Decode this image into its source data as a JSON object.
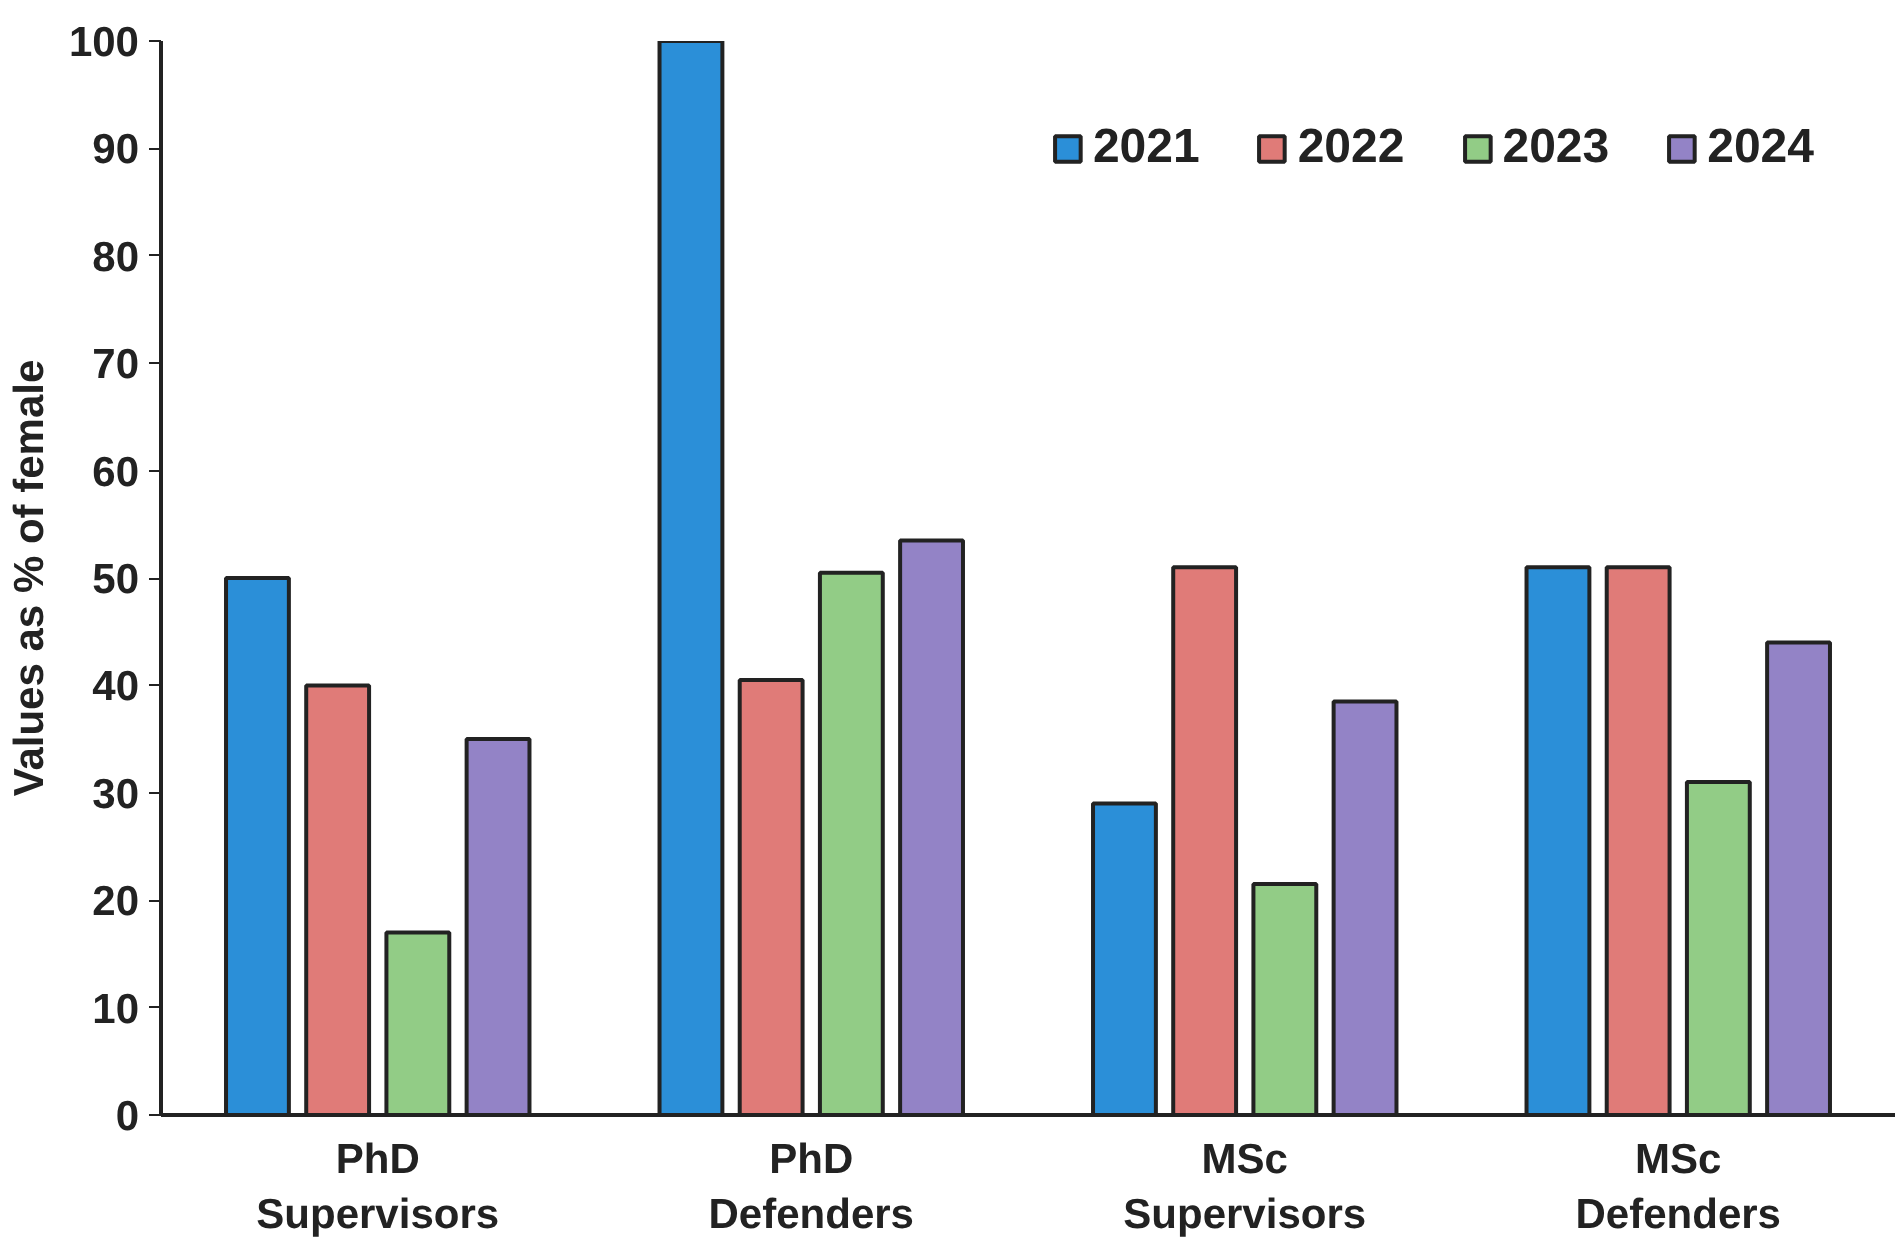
{
  "chart_data": {
    "type": "bar",
    "ylabel": "Values as % of female",
    "categories": [
      "PhD\nSupervisors",
      "PhD\nDefenders",
      "MSc\nSupervisors",
      "MSc\nDefenders"
    ],
    "series": [
      {
        "name": "2021",
        "color": "#2b8fd8",
        "values": [
          50,
          100,
          29,
          51
        ]
      },
      {
        "name": "2022",
        "color": "#e07b78",
        "values": [
          40,
          40.5,
          51,
          51
        ]
      },
      {
        "name": "2023",
        "color": "#92cc86",
        "values": [
          17,
          50.5,
          21.5,
          31
        ]
      },
      {
        "name": "2024",
        "color": "#9383c6",
        "values": [
          35,
          53.5,
          38.5,
          44
        ]
      }
    ],
    "ylim": [
      0,
      100
    ],
    "yticks": [
      0,
      10,
      20,
      30,
      40,
      50,
      60,
      70,
      80,
      90,
      100
    ],
    "grid": false,
    "legend": "top right"
  }
}
